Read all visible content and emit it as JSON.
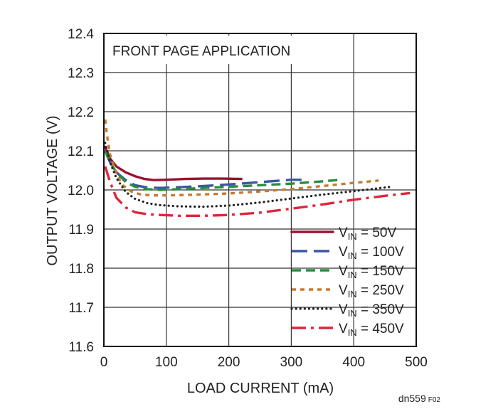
{
  "chart_data": {
    "type": "line",
    "title": "FRONT PAGE APPLICATION",
    "xlabel": "LOAD CURRENT (mA)",
    "ylabel": "OUTPUT VOLTAGE (V)",
    "xlim": [
      0,
      500
    ],
    "ylim": [
      11.6,
      12.4
    ],
    "x_ticks": [
      0,
      100,
      200,
      300,
      400,
      500
    ],
    "y_ticks": [
      11.6,
      11.7,
      11.8,
      11.9,
      12.0,
      12.1,
      12.2,
      12.3,
      12.4
    ],
    "y_tick_labels": [
      "11.6",
      "11.7",
      "11.8",
      "11.9",
      "12.0",
      "12.1",
      "12.2",
      "12.3",
      "12.4"
    ],
    "grid": true,
    "legend_position": "bottom-right",
    "series": [
      {
        "name_prefix": "V",
        "name_sub": "IN",
        "name_suffix": " =  50V",
        "color": "#9b1030",
        "dash": "solid",
        "x": [
          2,
          10,
          20,
          35,
          50,
          65,
          80,
          100,
          130,
          160,
          190,
          220
        ],
        "y": [
          12.11,
          12.08,
          12.06,
          12.045,
          12.035,
          12.028,
          12.025,
          12.026,
          12.028,
          12.029,
          12.029,
          12.028
        ]
      },
      {
        "name_prefix": "V",
        "name_sub": "IN",
        "name_suffix": " = 100V",
        "color": "#3a55a6",
        "dash": "longdash",
        "x": [
          2,
          10,
          20,
          35,
          50,
          70,
          90,
          120,
          160,
          200,
          250,
          300,
          320
        ],
        "y": [
          12.1,
          12.07,
          12.045,
          12.025,
          12.012,
          12.006,
          12.005,
          12.007,
          12.01,
          12.014,
          12.02,
          12.026,
          12.026
        ]
      },
      {
        "name_prefix": "V",
        "name_sub": "IN",
        "name_suffix": " = 150V",
        "color": "#2a8c3c",
        "dash": "dash",
        "x": [
          2,
          10,
          20,
          35,
          50,
          70,
          90,
          120,
          160,
          200,
          250,
          300,
          350,
          380
        ],
        "y": [
          12.1,
          12.07,
          12.045,
          12.02,
          12.008,
          12.002,
          12.0,
          12.002,
          12.005,
          12.008,
          12.012,
          12.016,
          12.022,
          12.026
        ]
      },
      {
        "name_prefix": "V",
        "name_sub": "IN",
        "name_suffix": " = 250V",
        "color": "#c47b30",
        "dash": "shortdash",
        "x": [
          2,
          5,
          10,
          20,
          30,
          45,
          60,
          80,
          100,
          150,
          200,
          250,
          300,
          350,
          400,
          440
        ],
        "y": [
          12.18,
          12.14,
          12.09,
          12.04,
          12.012,
          11.995,
          11.988,
          11.986,
          11.986,
          11.988,
          11.991,
          11.996,
          12.002,
          12.01,
          12.018,
          12.024
        ]
      },
      {
        "name_prefix": "V",
        "name_sub": "IN",
        "name_suffix": " = 350V",
        "color": "#222222",
        "dash": "dot",
        "x": [
          2,
          10,
          20,
          35,
          50,
          70,
          90,
          120,
          160,
          200,
          250,
          300,
          350,
          400,
          460
        ],
        "y": [
          12.12,
          12.07,
          12.03,
          11.995,
          11.977,
          11.966,
          11.961,
          11.958,
          11.957,
          11.96,
          11.968,
          11.978,
          11.988,
          11.997,
          12.008
        ]
      },
      {
        "name_prefix": "V",
        "name_sub": "IN",
        "name_suffix": " = 450V",
        "color": "#e0263a",
        "dash": "dashdot",
        "x": [
          2,
          10,
          20,
          35,
          50,
          70,
          90,
          120,
          160,
          200,
          250,
          300,
          350,
          400,
          450,
          490
        ],
        "y": [
          12.06,
          12.02,
          11.98,
          11.955,
          11.943,
          11.938,
          11.936,
          11.934,
          11.934,
          11.936,
          11.942,
          11.952,
          11.963,
          11.975,
          11.985,
          11.992
        ]
      }
    ]
  },
  "figure_id": {
    "main": "dn559",
    "sub": "F02"
  }
}
